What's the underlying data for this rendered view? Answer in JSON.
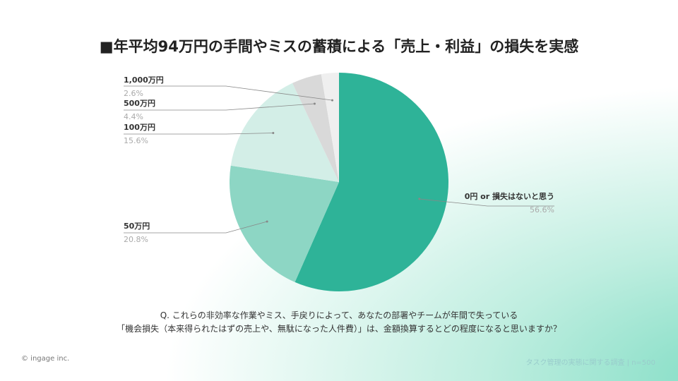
{
  "title": "■年平均94万円の手間やミスの蓄積による「売上・利益」の損失を実感",
  "chart_data": {
    "type": "pie",
    "categories": [
      "0円 or 損失はないと思う",
      "50万円",
      "100万円",
      "500万円",
      "1,000万円"
    ],
    "values": [
      56.6,
      20.8,
      15.6,
      4.4,
      2.6
    ],
    "labels": [
      "56.6%",
      "20.8%",
      "15.6%",
      "4.4%",
      "2.6%"
    ],
    "colors": [
      "#2eb398",
      "#8dd6c4",
      "#d3eee7",
      "#d9d9d9",
      "#efefef"
    ]
  },
  "question": [
    "Q. これらの非効率な作業やミス、手戻りによって、あなたの部署やチームが年間で失っている",
    "「機会損失（本来得られたはずの売上や、無駄になった人件費）」は、金額換算するとどの程度になると思いますか？"
  ],
  "footer": {
    "copyright": "© ingage inc.",
    "source": "タスク管理の実態に関する調査 | n=500"
  }
}
